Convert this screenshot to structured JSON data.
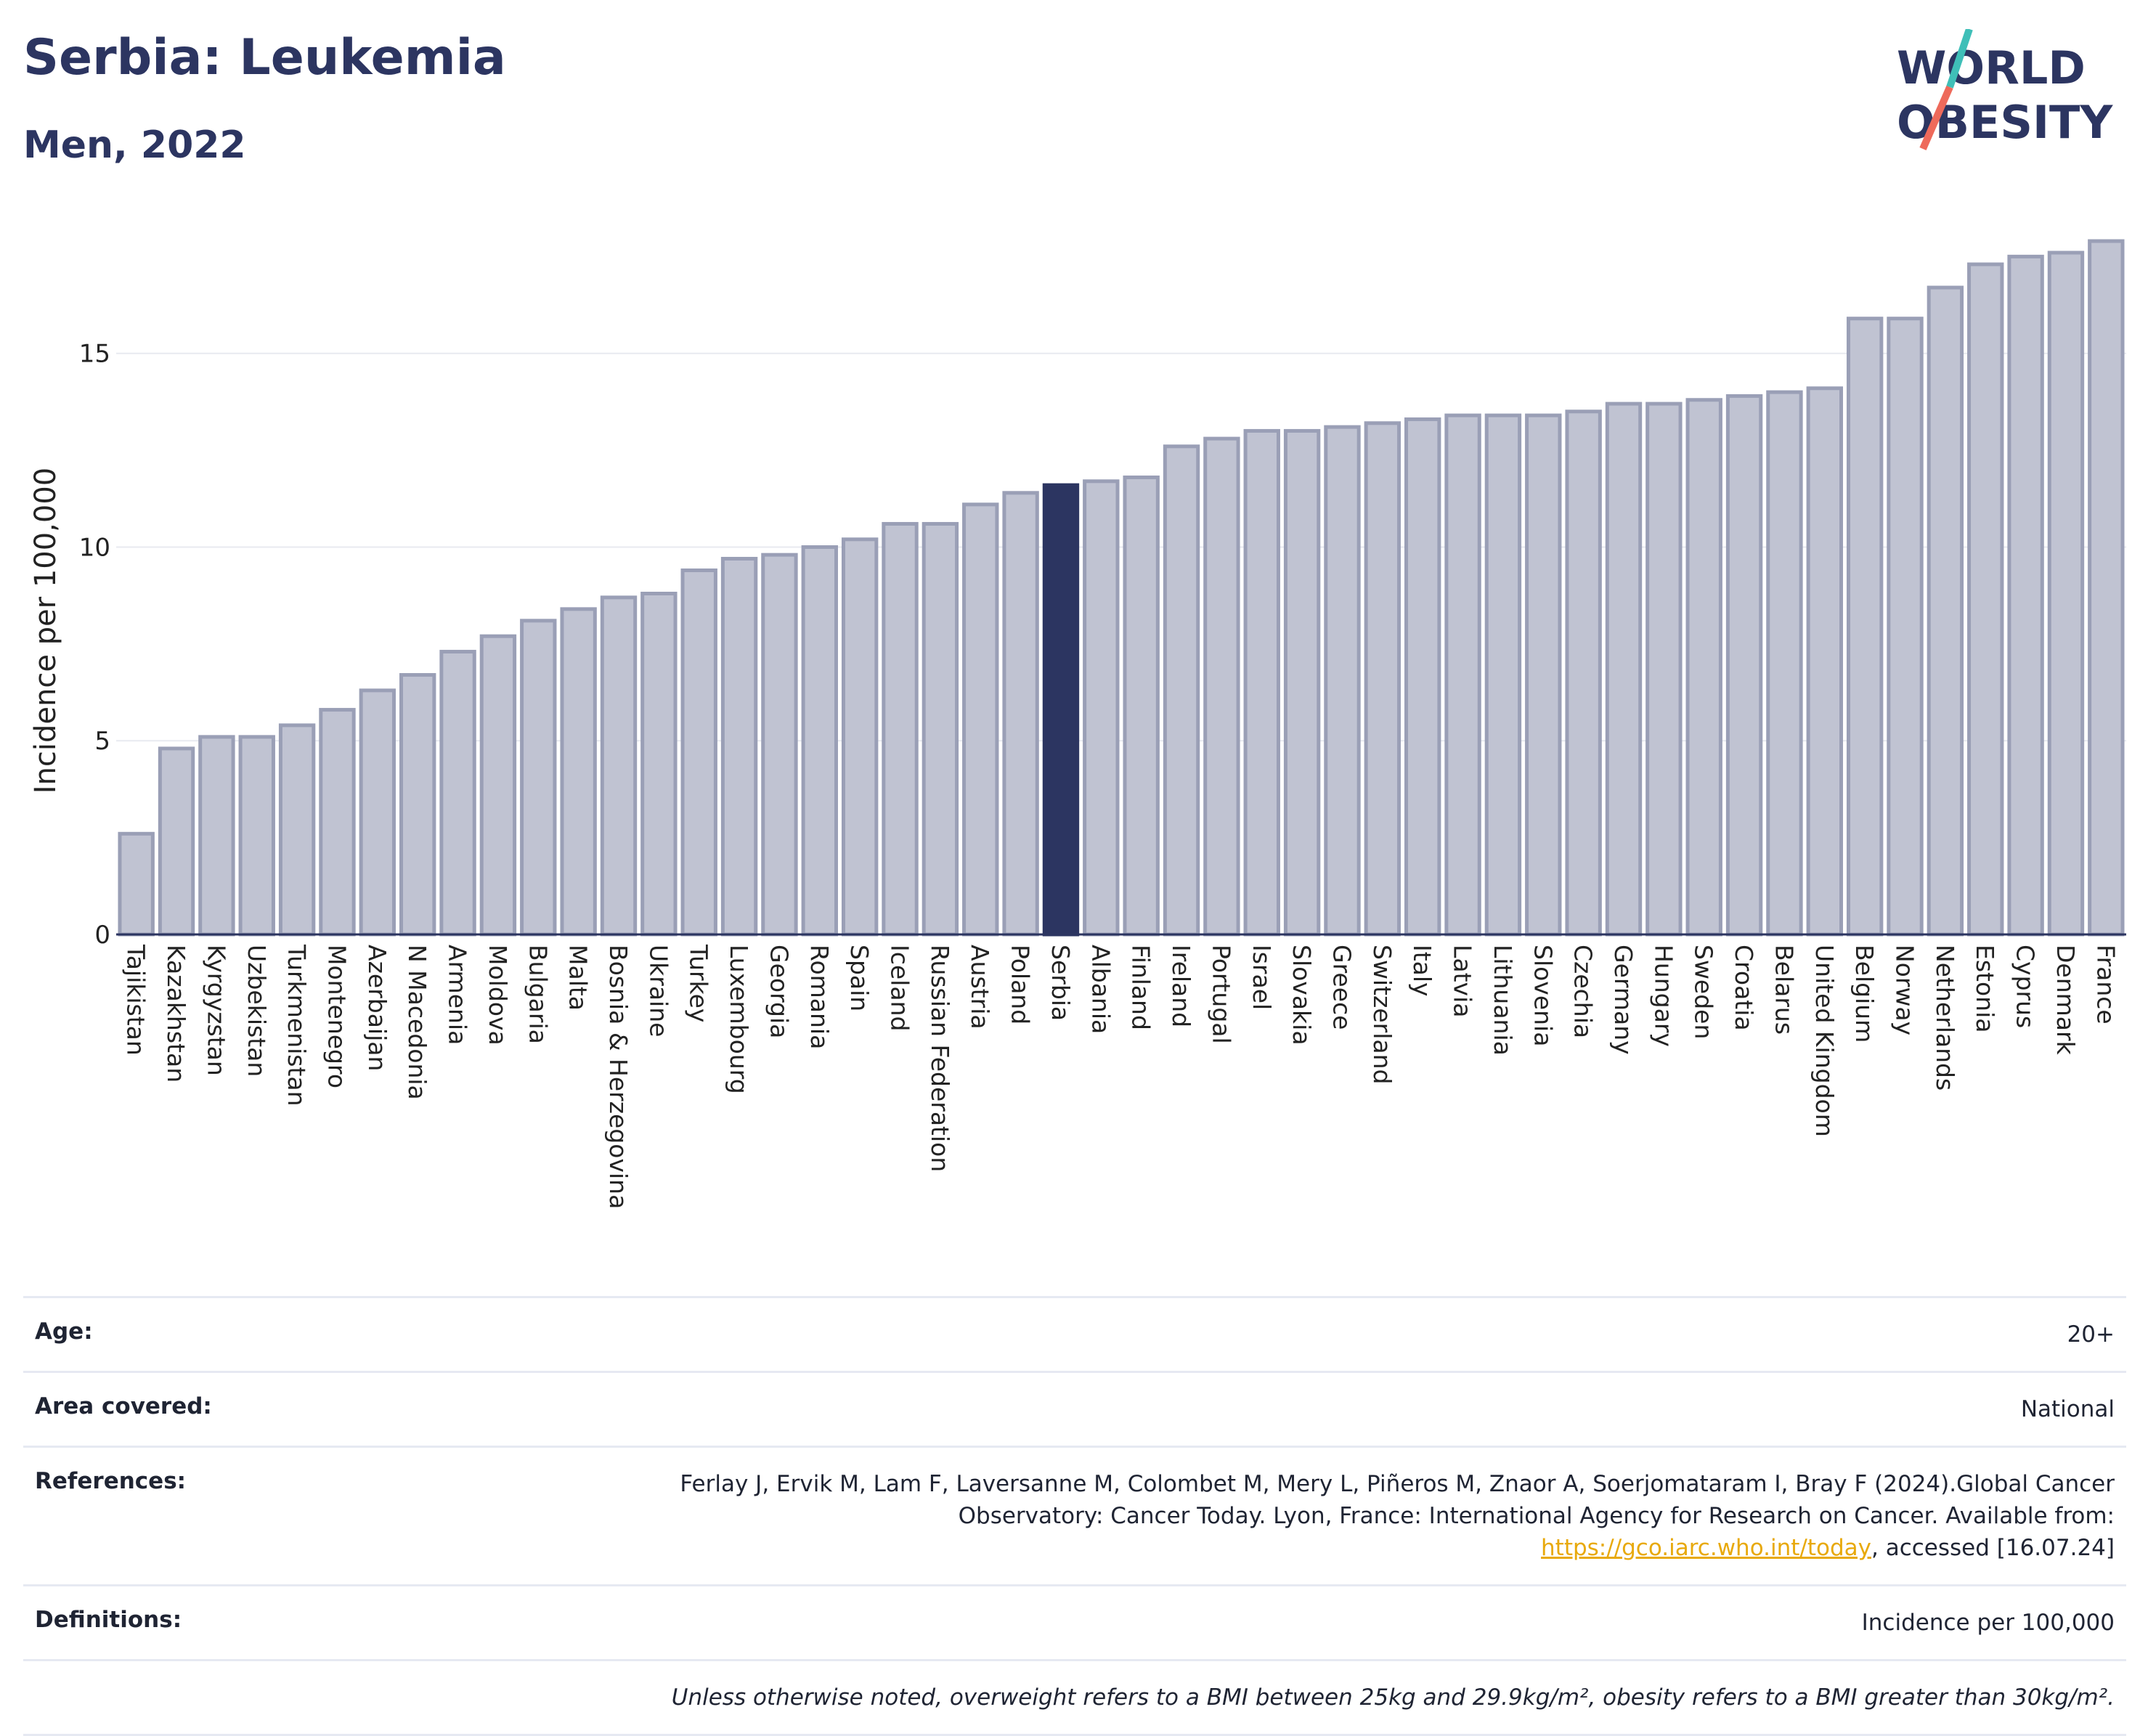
{
  "header": {
    "title": "Serbia: Leukemia",
    "subtitle": "Men, 2022"
  },
  "logo": {
    "line1": "WORLD",
    "line2": "OBESITY",
    "colors": {
      "text": "#2c3561",
      "slash_teal": "#3fbfb8",
      "slash_coral": "#ee6a5b"
    }
  },
  "chart_data": {
    "type": "bar",
    "ylabel": "Incidence per 100,000",
    "ylim": [
      0,
      18.5
    ],
    "yticks": [
      0,
      5,
      10,
      15
    ],
    "grid": true,
    "highlight": "Serbia",
    "colors": {
      "bar": "#c0c3d2",
      "bar_edge": "#9a9fb6",
      "highlight": "#2c3561",
      "grid": "#e8eaf0",
      "axis": "#2c3561"
    },
    "categories": [
      "Tajikistan",
      "Kazakhstan",
      "Kyrgyzstan",
      "Uzbekistan",
      "Turkmenistan",
      "Montenegro",
      "Azerbaijan",
      "N Macedonia",
      "Armenia",
      "Moldova",
      "Bulgaria",
      "Malta",
      "Bosnia & Herzegovina",
      "Ukraine",
      "Turkey",
      "Luxembourg",
      "Georgia",
      "Romania",
      "Spain",
      "Iceland",
      "Russian Federation",
      "Austria",
      "Poland",
      "Serbia",
      "Albania",
      "Finland",
      "Ireland",
      "Portugal",
      "Israel",
      "Slovakia",
      "Greece",
      "Switzerland",
      "Italy",
      "Latvia",
      "Lithuania",
      "Slovenia",
      "Czechia",
      "Germany",
      "Hungary",
      "Sweden",
      "Croatia",
      "Belarus",
      "United Kingdom",
      "Belgium",
      "Norway",
      "Netherlands",
      "Estonia",
      "Cyprus",
      "Denmark",
      "France"
    ],
    "values": [
      2.6,
      4.8,
      5.1,
      5.1,
      5.4,
      5.8,
      6.3,
      6.7,
      7.3,
      7.7,
      8.1,
      8.4,
      8.7,
      8.8,
      9.4,
      9.7,
      9.8,
      10.0,
      10.2,
      10.6,
      10.6,
      11.1,
      11.4,
      11.6,
      11.7,
      11.8,
      12.6,
      12.8,
      13.0,
      13.0,
      13.1,
      13.2,
      13.3,
      13.4,
      13.4,
      13.4,
      13.5,
      13.7,
      13.7,
      13.8,
      13.9,
      14.0,
      14.1,
      15.9,
      15.9,
      16.7,
      17.3,
      17.5,
      17.6,
      17.9
    ]
  },
  "info": {
    "age_label": "Age:",
    "age_value": "20+",
    "area_label": "Area covered:",
    "area_value": "National",
    "references_label": "References:",
    "references_text_1": "Ferlay J, Ervik M, Lam F, Laversanne M, Colombet M, Mery L, Piñeros M, Znaor A, Soerjomataram I, Bray F (2024).Global Cancer Observatory: Cancer Today. Lyon, France: International Agency for Research on Cancer. Available from: ",
    "references_link": "https://gco.iarc.who.int/today",
    "references_text_2": ", accessed [16.07.24]",
    "definitions_label": "Definitions:",
    "definitions_value": "Incidence per 100,000",
    "note": "Unless otherwise noted, overweight refers to a BMI between 25kg and 29.9kg/m², obesity refers to a BMI greater than 30kg/m²."
  }
}
